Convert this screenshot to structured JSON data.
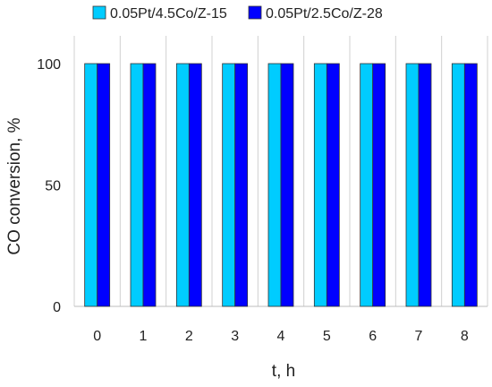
{
  "chart_data": {
    "type": "bar",
    "title": "",
    "xlabel": "t, h",
    "ylabel": "CO conversion, %",
    "categories": [
      "0",
      "1",
      "2",
      "3",
      "4",
      "5",
      "6",
      "7",
      "8"
    ],
    "series": [
      {
        "name": "0.05Pt/4.5Co/Z-15",
        "color": "#00ccff",
        "values": [
          100,
          100,
          100,
          100,
          100,
          100,
          100,
          100,
          100
        ]
      },
      {
        "name": "0.05Pt/2.5Co/Z-28",
        "color": "#0000ff",
        "values": [
          100,
          100,
          100,
          100,
          100,
          100,
          100,
          100,
          100
        ]
      }
    ],
    "ylim": [
      0,
      100
    ],
    "yticks": [
      0,
      50,
      100
    ],
    "grid": "vertical",
    "legend_position": "top"
  }
}
